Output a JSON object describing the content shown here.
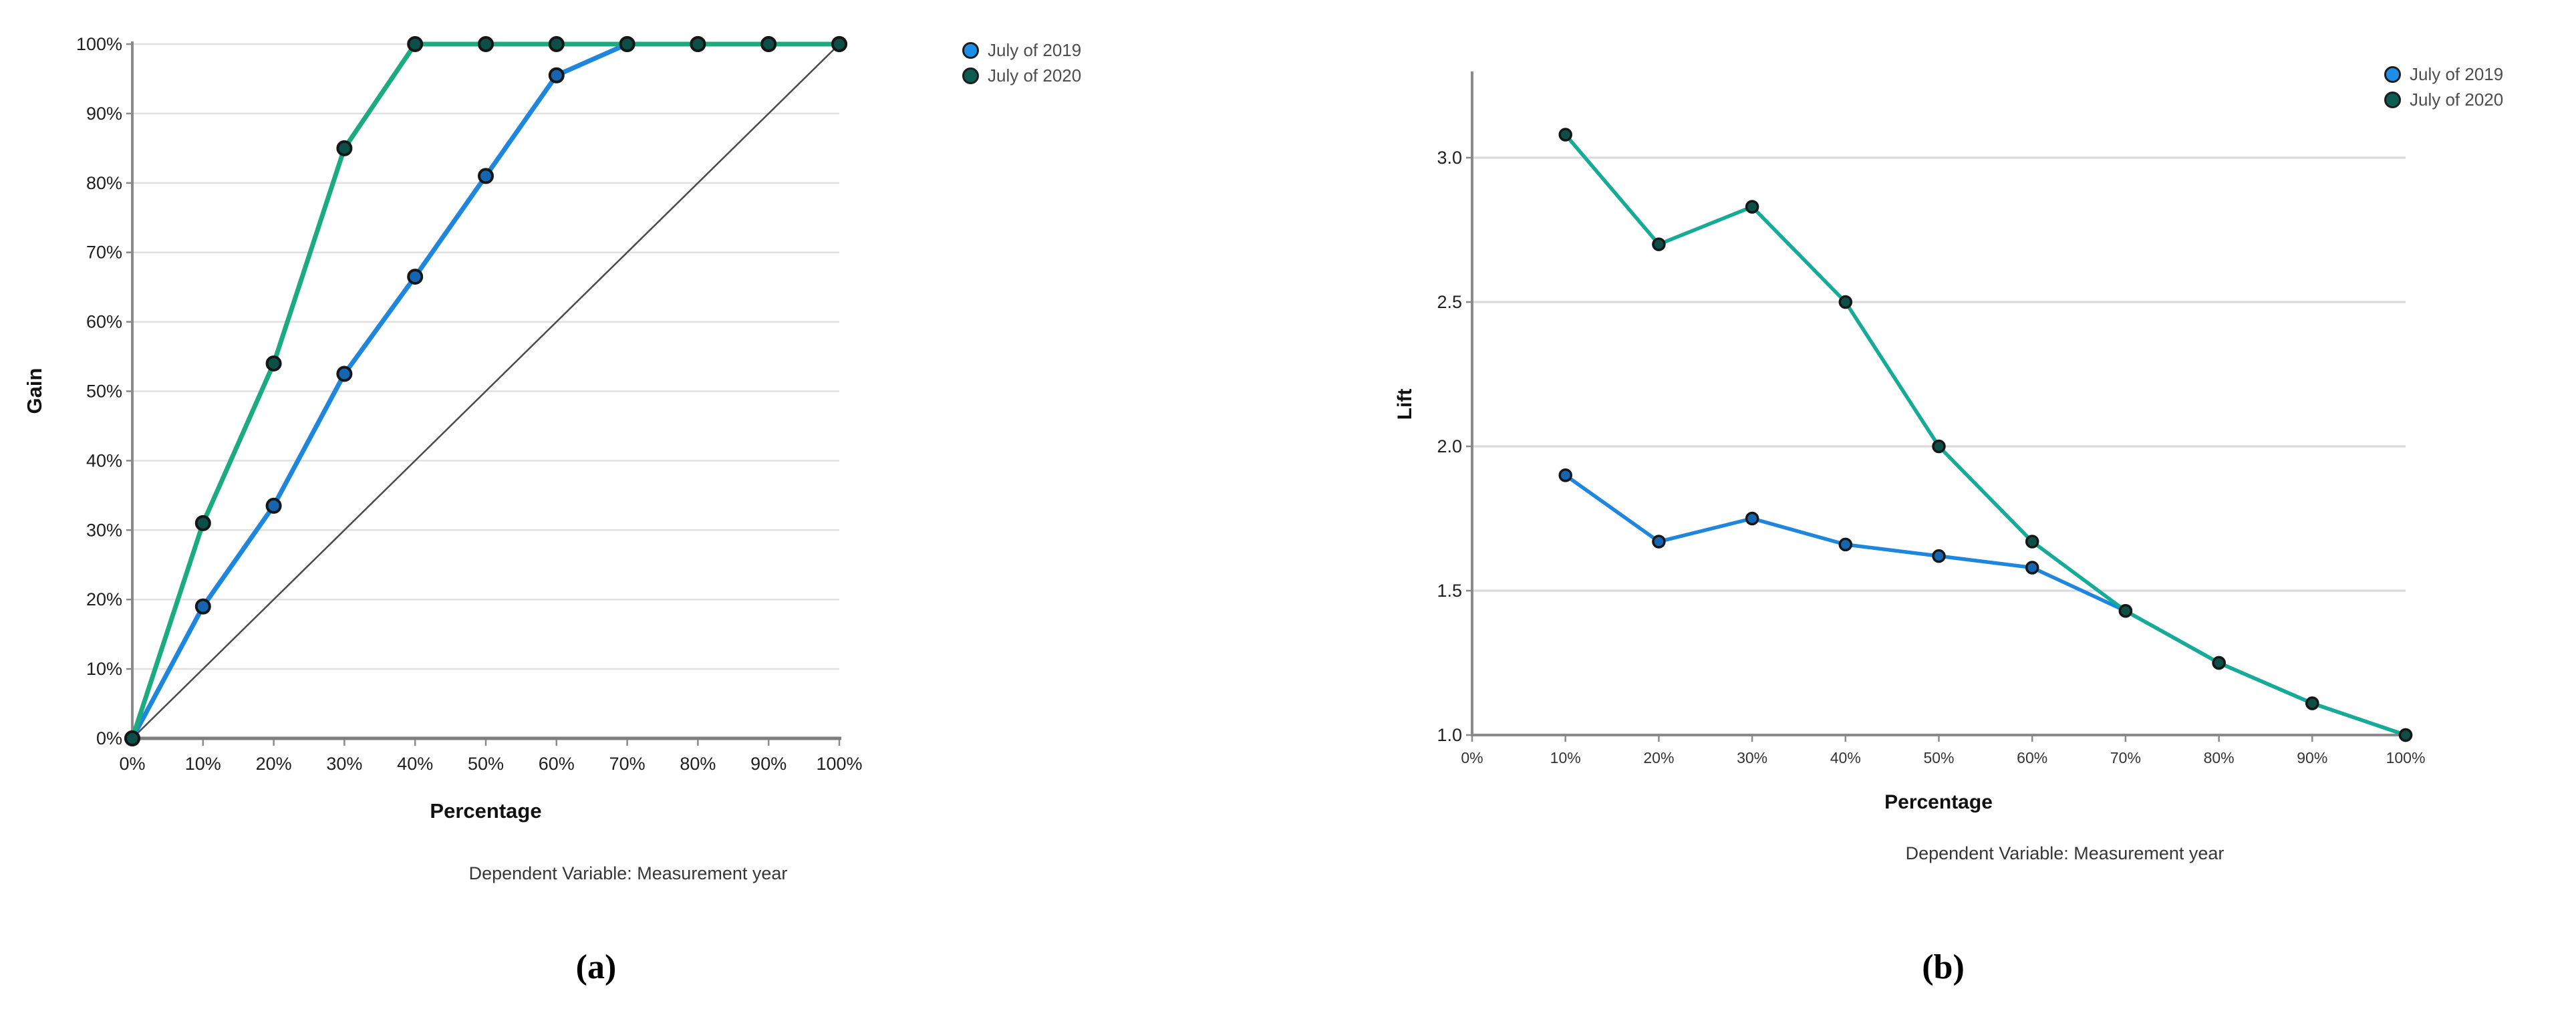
{
  "figure": {
    "caption_a": "(a)",
    "caption_b": "(b)"
  },
  "palette": {
    "grid": "#e0e0e0",
    "axis": "#8a8a8a",
    "axis_bottom": "#7d7d7d",
    "tick_text": "#1f1f1f",
    "legend_text": "#4d4d4d",
    "marker_stroke": "#161616",
    "blue_2019": "#1e86dd",
    "teal_2020": "#1caa80"
  },
  "chart_data": [
    {
      "panel": "a",
      "type": "line",
      "title": "",
      "xlabel": "Percentage",
      "ylabel": "Gain",
      "footnote": "Dependent Variable: Measurement year",
      "caption": "(a)",
      "grid": true,
      "legend_position": "outside-top-right",
      "xlim": [
        0,
        100
      ],
      "ylim": [
        0,
        100
      ],
      "x": [
        0,
        10,
        20,
        30,
        40,
        50,
        60,
        70,
        80,
        90,
        100
      ],
      "x_tick_labels": [
        "0%",
        "10%",
        "20%",
        "30%",
        "40%",
        "50%",
        "60%",
        "70%",
        "80%",
        "90%",
        "100%"
      ],
      "y_ticks": [
        0,
        10,
        20,
        30,
        40,
        50,
        60,
        70,
        80,
        90,
        100
      ],
      "y_tick_labels": [
        "0%",
        "10%",
        "20%",
        "30%",
        "40%",
        "50%",
        "60%",
        "70%",
        "80%",
        "90%",
        "100%"
      ],
      "series": [
        {
          "name": "July of 2019",
          "x": [
            0,
            10,
            20,
            30,
            40,
            50,
            60,
            70,
            80,
            90,
            100
          ],
          "values": [
            0,
            19,
            33.5,
            52.5,
            66.5,
            81,
            95.5,
            100,
            100,
            100,
            100
          ],
          "line_color": "#1e86dd",
          "marker_color": "#1565b0",
          "legend_dot_color": "#1e8fe8"
        },
        {
          "name": "July of 2020",
          "x": [
            0,
            10,
            20,
            30,
            40,
            50,
            60,
            70,
            80,
            90,
            100
          ],
          "values": [
            0,
            31,
            54,
            85,
            100,
            100,
            100,
            100,
            100,
            100,
            100
          ],
          "line_color": "#1caa80",
          "marker_color": "#0c4f47",
          "legend_dot_color": "#0e5b52"
        }
      ],
      "reference_line": {
        "x": [
          0,
          100
        ],
        "y": [
          0,
          100
        ],
        "color": "#4a4a4a",
        "note": "baseline diagonal"
      }
    },
    {
      "panel": "b",
      "type": "line",
      "title": "",
      "xlabel": "Percentage",
      "ylabel": "Lift",
      "footnote": "Dependent Variable: Measurement year",
      "caption": "(b)",
      "grid": true,
      "legend_position": "outside-top-right",
      "xlim": [
        0,
        100
      ],
      "ylim": [
        1.0,
        3.0
      ],
      "x_tick_labels": [
        "0%",
        "10%",
        "20%",
        "30%",
        "40%",
        "50%",
        "60%",
        "70%",
        "80%",
        "90%",
        "100%"
      ],
      "y_ticks": [
        1.0,
        1.5,
        2.0,
        2.5,
        3.0
      ],
      "y_tick_labels": [
        "1.0",
        "1.5",
        "2.0",
        "2.5",
        "3.0"
      ],
      "series": [
        {
          "name": "July of 2019",
          "x": [
            10,
            20,
            30,
            40,
            50,
            60,
            70,
            80,
            90,
            100
          ],
          "values": [
            1.9,
            1.67,
            1.75,
            1.66,
            1.62,
            1.58,
            1.43,
            1.25,
            1.11,
            1.0
          ],
          "line_color": "#1e86dd",
          "marker_color": "#1565b0",
          "legend_dot_color": "#1e8fe8"
        },
        {
          "name": "July of 2020",
          "x": [
            10,
            20,
            30,
            40,
            50,
            60,
            70,
            80,
            90,
            100
          ],
          "values": [
            3.08,
            2.7,
            2.83,
            2.5,
            2.0,
            1.67,
            1.43,
            1.25,
            1.11,
            1.0
          ],
          "line_color": "#16ab96",
          "marker_color": "#0c4f47",
          "legend_dot_color": "#0e5b52"
        }
      ]
    }
  ]
}
